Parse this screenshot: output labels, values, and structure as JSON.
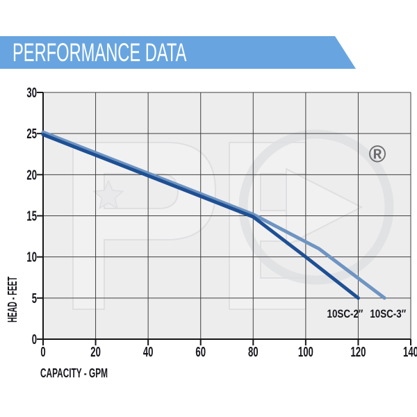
{
  "header": {
    "title": "PERFORMANCE DATA"
  },
  "colors": {
    "banner": "#68A5E0",
    "plot_bg": "#EDEDEE",
    "grid": "#3F3F3F",
    "axis": "#151515",
    "text": "#15151C",
    "watermark": "#D6D7D9",
    "watermark_fill": "#F4F4F6",
    "series_dark": "#1E4F93",
    "series_light": "#6E94C1"
  },
  "watermark": {
    "symbol": "®"
  },
  "chart_data": {
    "type": "line",
    "title": "PERFORMANCE DATA",
    "xlabel": "CAPACITY - GPM",
    "ylabel": "HEAD - FEET",
    "xlim": [
      0,
      140
    ],
    "ylim": [
      0,
      30
    ],
    "xticks": [
      0,
      20,
      40,
      60,
      80,
      100,
      120,
      140
    ],
    "yticks": [
      0,
      5,
      10,
      15,
      20,
      25,
      30
    ],
    "grid": true,
    "legend_position": "inline-labels",
    "series": [
      {
        "name": "10SC-2″",
        "color": "#1E4F93",
        "points": [
          [
            0,
            25
          ],
          [
            40,
            20
          ],
          [
            80,
            15
          ],
          [
            100,
            10
          ],
          [
            120,
            5
          ]
        ]
      },
      {
        "name": "10SC-3″",
        "color": "#6E94C1",
        "points": [
          [
            0,
            25
          ],
          [
            40,
            20
          ],
          [
            80,
            15
          ],
          [
            105,
            11
          ],
          [
            130,
            5
          ]
        ]
      }
    ]
  }
}
